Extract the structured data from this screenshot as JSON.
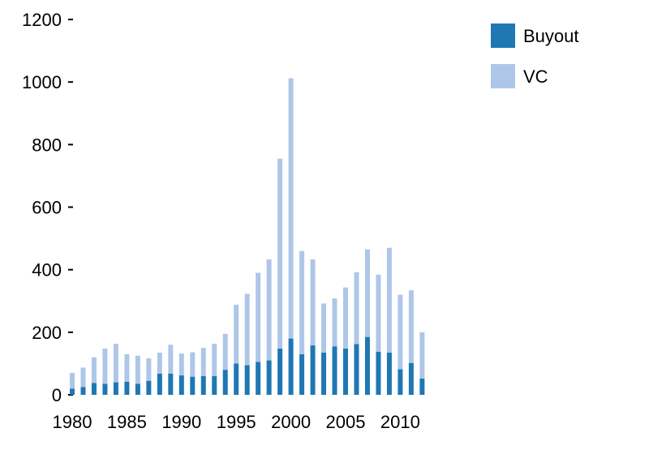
{
  "chart_data": {
    "type": "bar",
    "stacked": true,
    "title": "",
    "xlabel": "",
    "ylabel": "",
    "ylim": [
      0,
      1200
    ],
    "yticks": [
      0,
      200,
      400,
      600,
      800,
      1000,
      1200
    ],
    "xticks": [
      1980,
      1985,
      1990,
      1995,
      2000,
      2005,
      2010
    ],
    "grid": false,
    "legend_position": "top-right",
    "x": [
      1980,
      1981,
      1982,
      1983,
      1984,
      1985,
      1986,
      1987,
      1988,
      1989,
      1990,
      1991,
      1992,
      1993,
      1994,
      1995,
      1996,
      1997,
      1998,
      1999,
      2000,
      2001,
      2002,
      2003,
      2004,
      2005,
      2006,
      2007,
      2008,
      2009,
      2010,
      2011,
      2012
    ],
    "series": [
      {
        "name": "Buyout",
        "color": "#1f77b4",
        "values": [
          20,
          25,
          38,
          35,
          40,
          42,
          35,
          45,
          68,
          68,
          62,
          58,
          60,
          60,
          80,
          100,
          95,
          105,
          110,
          148,
          180,
          130,
          158,
          135,
          155,
          148,
          162,
          185,
          138,
          135,
          82,
          102,
          52
        ]
      },
      {
        "name": "VC",
        "color": "#aec7e8",
        "values": [
          50,
          62,
          82,
          113,
          123,
          88,
          90,
          72,
          67,
          92,
          70,
          78,
          90,
          103,
          115,
          188,
          228,
          285,
          323,
          607,
          832,
          330,
          275,
          157,
          153,
          195,
          230,
          280,
          246,
          335,
          238,
          232,
          148
        ]
      }
    ]
  }
}
